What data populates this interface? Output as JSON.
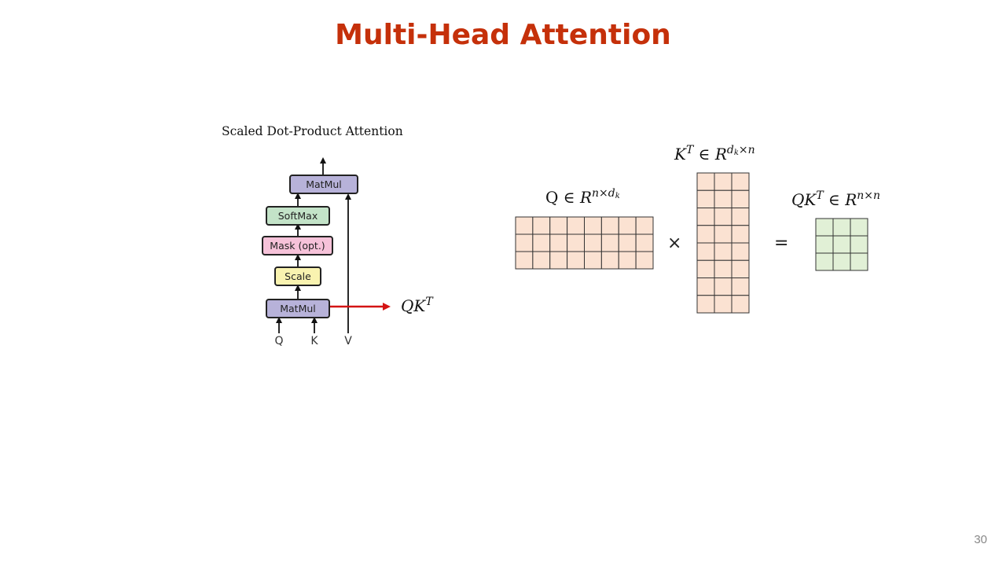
{
  "slide": {
    "title": "Multi-Head Attention",
    "page_number": "30"
  },
  "diagram": {
    "caption": "Scaled Dot-Product Attention",
    "blocks": {
      "matmul_top": "MatMul",
      "softmax": "SoftMax",
      "mask": "Mask (opt.)",
      "scale": "Scale",
      "matmul_bottom": "MatMul"
    },
    "inputs": {
      "q": "Q",
      "k": "K",
      "v": "V"
    },
    "colors": {
      "matmul": "#b7b2d9",
      "softmax": "#c3e3c8",
      "mask": "#f6c2d9",
      "scale": "#f9f3b0",
      "arrow_highlight": "#d41414"
    }
  },
  "output_label": {
    "base": "QK",
    "sup": "T"
  },
  "equation": {
    "q_matrix": {
      "label_base": "Q",
      "label_in": "∈",
      "label_space": "R",
      "label_sup": "n×d",
      "label_sub": "k",
      "rows": 3,
      "cols": 8,
      "fill": "#fbe2d2"
    },
    "times_symbol": "×",
    "kt_matrix": {
      "label_base": "K",
      "label_base_sup": "T",
      "label_in": "∈",
      "label_space": "R",
      "label_sup_d": "d",
      "label_sub": "k",
      "label_sup_rest": "×n",
      "rows": 8,
      "cols": 3,
      "fill": "#fbe2d2"
    },
    "equals_symbol": "=",
    "result_matrix": {
      "label_base": "QK",
      "label_base_sup": "T",
      "label_in": "∈",
      "label_space": "R",
      "label_sup": "n×n",
      "rows": 3,
      "cols": 3,
      "fill": "#e1f0d6"
    },
    "grid_line_color": "#333333"
  }
}
